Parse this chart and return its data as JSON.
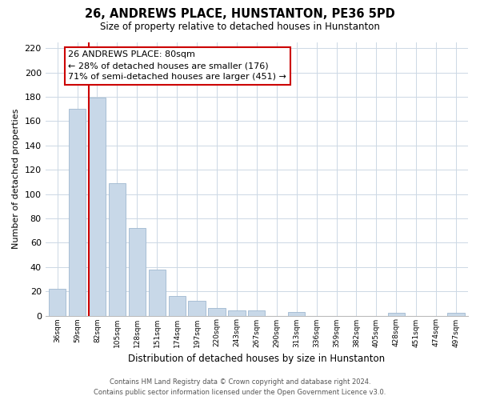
{
  "title": "26, ANDREWS PLACE, HUNSTANTON, PE36 5PD",
  "subtitle": "Size of property relative to detached houses in Hunstanton",
  "xlabel": "Distribution of detached houses by size in Hunstanton",
  "ylabel": "Number of detached properties",
  "footer_line1": "Contains HM Land Registry data © Crown copyright and database right 2024.",
  "footer_line2": "Contains public sector information licensed under the Open Government Licence v3.0.",
  "categories": [
    "36sqm",
    "59sqm",
    "82sqm",
    "105sqm",
    "128sqm",
    "151sqm",
    "174sqm",
    "197sqm",
    "220sqm",
    "243sqm",
    "267sqm",
    "290sqm",
    "313sqm",
    "336sqm",
    "359sqm",
    "382sqm",
    "405sqm",
    "428sqm",
    "451sqm",
    "474sqm",
    "497sqm"
  ],
  "values": [
    22,
    170,
    179,
    109,
    72,
    38,
    16,
    12,
    6,
    4,
    4,
    0,
    3,
    0,
    0,
    0,
    0,
    2,
    0,
    0,
    2
  ],
  "bar_color": "#c8d8e8",
  "bar_edge_color": "#a0b8d0",
  "highlight_line_color": "#cc0000",
  "highlight_bar_index": 2,
  "ylim": [
    0,
    225
  ],
  "yticks": [
    0,
    20,
    40,
    60,
    80,
    100,
    120,
    140,
    160,
    180,
    200,
    220
  ],
  "annotation_title": "26 ANDREWS PLACE: 80sqm",
  "annotation_line1": "← 28% of detached houses are smaller (176)",
  "annotation_line2": "71% of semi-detached houses are larger (451) →",
  "background_color": "#ffffff",
  "grid_color": "#ccd8e4"
}
